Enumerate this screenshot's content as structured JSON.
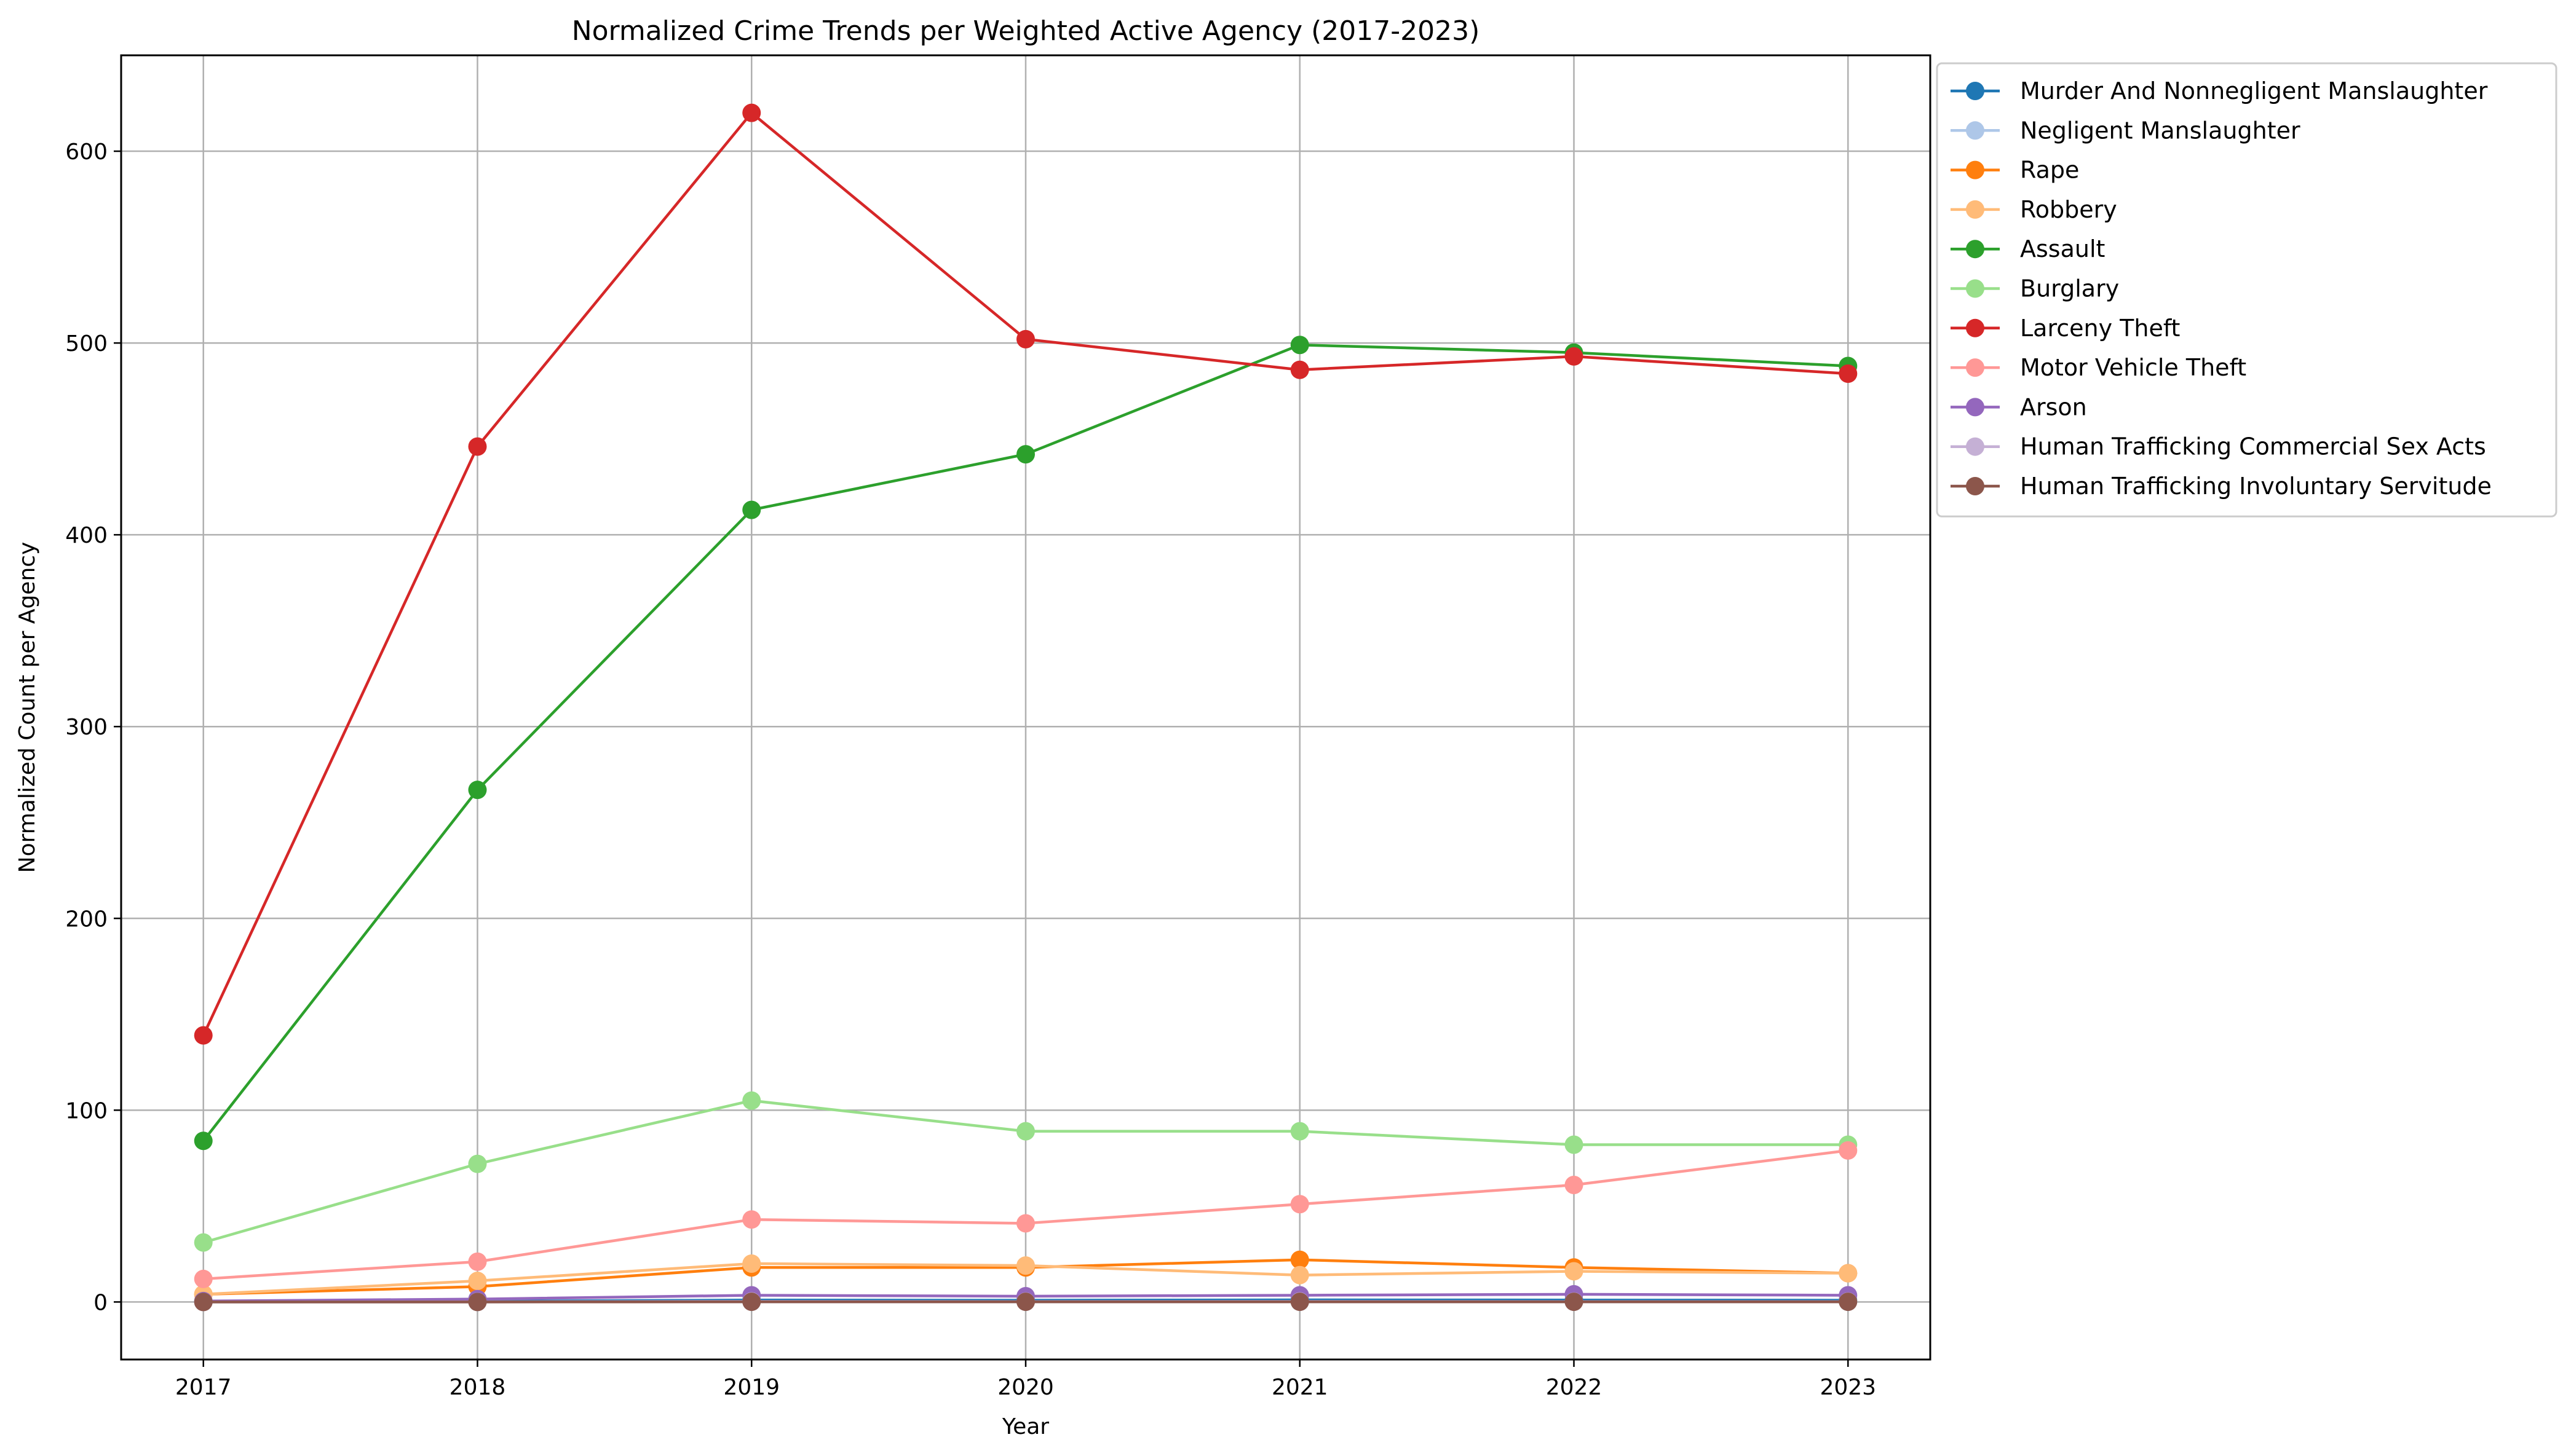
{
  "chart_data": {
    "type": "line",
    "title": "Normalized Crime Trends per Weighted Active Agency (2017-2023)",
    "xlabel": "Year",
    "ylabel": "Normalized Count per Agency",
    "x": [
      "2017",
      "2018",
      "2019",
      "2020",
      "2021",
      "2022",
      "2023"
    ],
    "xlim": [
      2016.7,
      2023.3
    ],
    "ylim": [
      -30,
      650
    ],
    "yticks": [
      0,
      100,
      200,
      300,
      400,
      500,
      600
    ],
    "grid": true,
    "legend_position": "outside-top-right",
    "marker": "circle",
    "series": [
      {
        "name": "Murder And Nonnegligent Manslaughter",
        "color": "#1f77b4",
        "values": [
          0.2,
          0.4,
          1.0,
          0.9,
          1.1,
          1.0,
          0.9
        ]
      },
      {
        "name": "Negligent Manslaughter",
        "color": "#aec7e8",
        "values": [
          0.0,
          0.0,
          0.1,
          0.1,
          0.1,
          0.1,
          0.1
        ]
      },
      {
        "name": "Rape",
        "color": "#ff7f0e",
        "values": [
          4,
          8,
          18,
          18,
          22,
          18,
          15
        ]
      },
      {
        "name": "Robbery",
        "color": "#ffbb78",
        "values": [
          4,
          11,
          20,
          19,
          14,
          16,
          15
        ]
      },
      {
        "name": "Assault",
        "color": "#2ca02c",
        "values": [
          84,
          267,
          413,
          442,
          499,
          495,
          488
        ]
      },
      {
        "name": "Burglary",
        "color": "#98df8a",
        "values": [
          31,
          72,
          105,
          89,
          89,
          82,
          82
        ]
      },
      {
        "name": "Larceny Theft",
        "color": "#d62728",
        "values": [
          139,
          446,
          620,
          502,
          486,
          493,
          484
        ]
      },
      {
        "name": "Motor Vehicle Theft",
        "color": "#ff9896",
        "values": [
          12,
          21,
          43,
          41,
          51,
          61,
          79
        ]
      },
      {
        "name": "Arson",
        "color": "#9467bd",
        "values": [
          0.5,
          1.5,
          3.5,
          3,
          3.5,
          4,
          3.5
        ]
      },
      {
        "name": "Human Trafficking Commercial Sex Acts",
        "color": "#c5b0d5",
        "values": [
          0.0,
          0.1,
          0.3,
          0.2,
          0.3,
          0.2,
          0.2
        ]
      },
      {
        "name": "Human Trafficking Involuntary Servitude",
        "color": "#8c564b",
        "values": [
          0.0,
          0.0,
          0.1,
          0.1,
          0.1,
          0.1,
          0.1
        ]
      }
    ]
  }
}
